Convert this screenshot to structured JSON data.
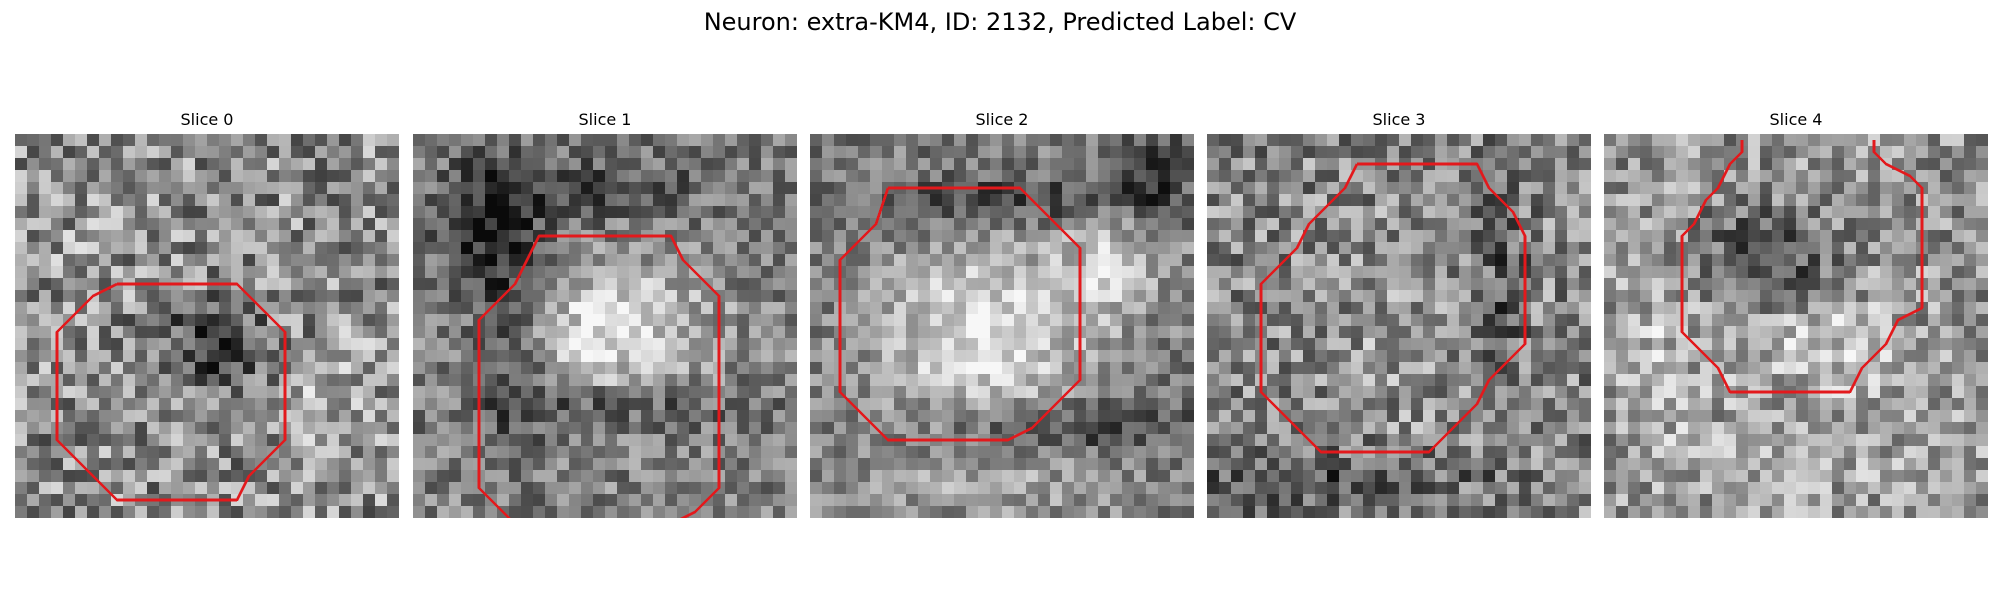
{
  "figure": {
    "title": "Neuron: extra-KM4, ID: 2132, Predicted Label: CV"
  },
  "panels": [
    {
      "title": "Slice 0"
    },
    {
      "title": "Slice 1"
    },
    {
      "title": "Slice 2"
    },
    {
      "title": "Slice 3"
    },
    {
      "title": "Slice 4"
    }
  ],
  "colors": {
    "contour": "#e3191c",
    "colormap": "grayscale"
  }
}
